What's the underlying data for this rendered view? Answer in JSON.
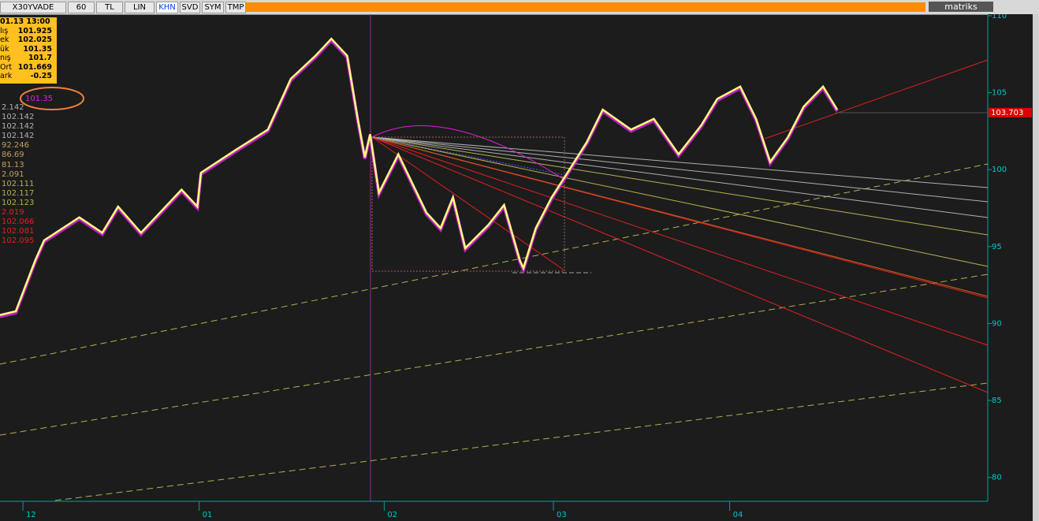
{
  "toolbar": {
    "buttons": [
      "X30YVADE",
      "60",
      "TL",
      "LIN",
      "KHN",
      "SVD",
      "SYM",
      "TMP"
    ],
    "brand": "matriks"
  },
  "info_box": {
    "time": "01.13 13:00",
    "rows": [
      [
        "lış",
        "101.925"
      ],
      [
        "ek",
        "102.025"
      ],
      [
        "ük",
        "101.35"
      ],
      [
        "nış",
        "101.7"
      ],
      [
        "Ort",
        "101.669"
      ],
      [
        "ark",
        "-0.25"
      ]
    ]
  },
  "marker": "101.35",
  "indicators": [
    {
      "text": "2.142",
      "color": "#b0b0b0"
    },
    {
      "text": "102.142",
      "color": "#b0b0b0"
    },
    {
      "text": "102.142",
      "color": "#b0b0b0"
    },
    {
      "text": "102.142",
      "color": "#b0b0b0"
    },
    {
      "text": "92.246",
      "color": "#c0a060"
    },
    {
      "text": "86.69",
      "color": "#c0a060"
    },
    {
      "text": "81.13",
      "color": "#c0a060"
    },
    {
      "text": "2.091",
      "color": "#c0a060"
    },
    {
      "text": "102.111",
      "color": "#b8b050"
    },
    {
      "text": "102.117",
      "color": "#b8b050"
    },
    {
      "text": "102.123",
      "color": "#b8b050"
    },
    {
      "text": "2.019",
      "color": "#e02020"
    },
    {
      "text": "102.066",
      "color": "#e02020"
    },
    {
      "text": "102.081",
      "color": "#e02020"
    },
    {
      "text": "102.095",
      "color": "#e02020"
    }
  ],
  "chart_data": {
    "type": "line",
    "color": "#ffff80",
    "x": [
      0,
      9,
      20,
      25,
      45,
      58,
      67,
      80,
      103,
      112,
      114,
      134,
      152,
      165,
      179,
      188,
      197,
      203,
      207,
      210,
      215,
      226,
      242,
      250,
      257,
      264,
      277,
      286,
      295,
      297,
      304,
      313,
      322,
      333,
      342,
      358,
      371,
      385,
      398,
      407,
      420,
      429,
      437,
      447,
      456,
      467,
      475
    ],
    "values": [
      90.55,
      90.8,
      94.1,
      95.4,
      96.9,
      95.9,
      97.6,
      95.9,
      98.7,
      97.6,
      99.8,
      101.3,
      102.6,
      105.9,
      107.4,
      108.5,
      107.4,
      103.3,
      100.8,
      102.3,
      98.5,
      101.0,
      97.2,
      96.2,
      98.2,
      94.9,
      96.4,
      97.7,
      94.1,
      93.6,
      96.2,
      98.2,
      99.8,
      101.8,
      103.9,
      102.6,
      103.3,
      101.0,
      102.9,
      104.6,
      105.4,
      103.3,
      100.5,
      102.1,
      104.1,
      105.4,
      103.9
    ],
    "xlim": [
      0,
      560
    ],
    "xticks": [
      {
        "value": 13,
        "label": "12"
      },
      {
        "value": 113,
        "label": "01"
      },
      {
        "value": 218,
        "label": "02"
      },
      {
        "value": 314,
        "label": "03"
      },
      {
        "value": 414,
        "label": "04"
      }
    ],
    "ylim": [
      78.5,
      110.1
    ],
    "yticks": [
      80,
      85,
      90,
      95,
      100,
      105,
      110
    ],
    "last_price": 103.703
  }
}
